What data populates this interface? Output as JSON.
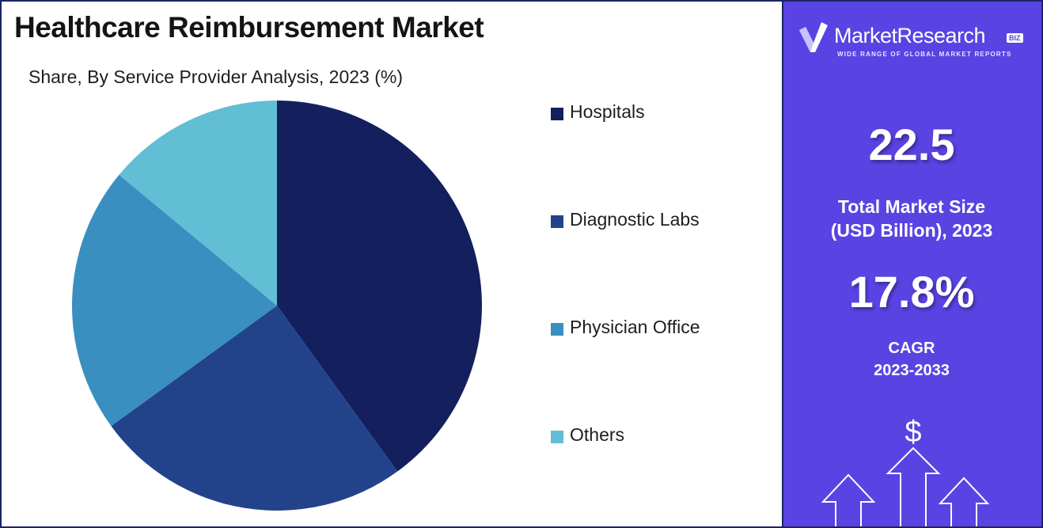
{
  "title": "Healthcare Reimbursement Market",
  "subtitle": "Share, By Service Provider Analysis, 2023 (%)",
  "chart_data": {
    "type": "pie",
    "title": "Healthcare Reimbursement Market",
    "subtitle": "Share, By Service Provider Analysis, 2023 (%)",
    "categories": [
      "Hospitals",
      "Diagnostic Labs",
      "Physician Office",
      "Others"
    ],
    "values": [
      40,
      25,
      21,
      14
    ],
    "colors": [
      "#141f5e",
      "#22438a",
      "#3a8fc1",
      "#62bed4"
    ],
    "legend": "right",
    "start_angle": "top, clockwise"
  },
  "sidebar": {
    "logo_name": "MarketResearch",
    "logo_badge": "BIZ",
    "logo_tagline": "WIDE RANGE OF GLOBAL MARKET REPORTS",
    "market_size_value": "22.5",
    "market_size_label_line1": "Total Market Size",
    "market_size_label_line2": "(USD Billion), 2023",
    "cagr_value": "17.8%",
    "cagr_label_line1": "CAGR",
    "cagr_label_line2": "2023-2033",
    "currency_symbol": "$",
    "background_color": "#5a43e3"
  }
}
